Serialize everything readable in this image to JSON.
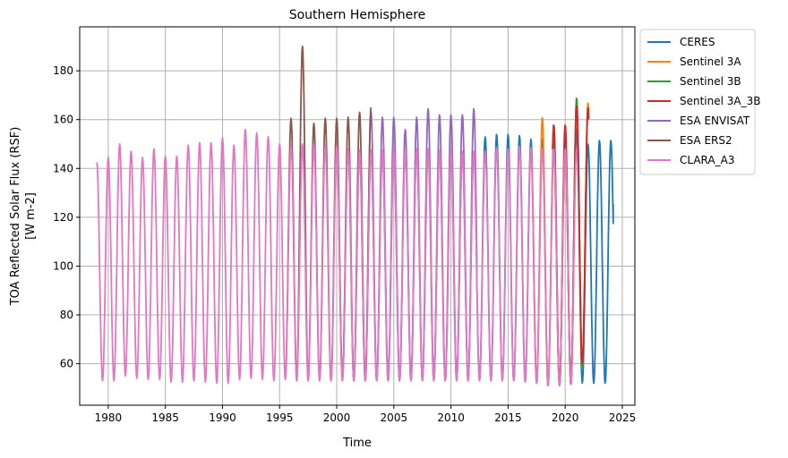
{
  "chart_data": {
    "type": "line",
    "title": "Southern Hemisphere",
    "xlabel": "Time",
    "ylabel": [
      "TOA Reflected Solar Flux (RSF)",
      "[W m-2]"
    ],
    "xlim": [
      1977.5,
      2026.1
    ],
    "ylim": [
      43,
      198
    ],
    "xticks": [
      1980,
      1985,
      1990,
      1995,
      2000,
      2005,
      2010,
      2015,
      2020,
      2025
    ],
    "yticks": [
      60,
      80,
      100,
      120,
      140,
      160,
      180
    ],
    "grid": true,
    "legend_position": "outside-top-right",
    "series": [
      {
        "name": "CERES",
        "color": "#1f77b4",
        "start": 2000.2,
        "end": 2024.2,
        "end_value": 125.5,
        "peaks": {
          "2013": 153,
          "2014": 154,
          "2015": 154,
          "2016": 153.5,
          "2017": 152,
          "2018": 152,
          "2019": 152,
          "2020": 153,
          "2021": 156,
          "2022": 150,
          "2023": 151.5,
          "2024": 151.5
        },
        "troughs": {
          "2000": 54,
          "2021": 52,
          "2022": 52,
          "2023": 52
        }
      },
      {
        "name": "Sentinel 3A",
        "color": "#ff7f0e",
        "start": 2016.9,
        "end": 2022.1,
        "peaks": {
          "2017": 147,
          "2018": 161,
          "2021": 166,
          "2022": 167
        },
        "troughs": {
          "2021": 58
        }
      },
      {
        "name": "Sentinel 3B",
        "color": "#2ca02c",
        "start": 2018.9,
        "end": 2022.1,
        "peaks": {
          "2019": 158,
          "2021": 169,
          "2022": 165
        },
        "troughs": {
          "2021": 58
        }
      },
      {
        "name": "Sentinel 3A_3B",
        "color": "#d62728",
        "start": 2018.9,
        "end": 2022.1,
        "peaks": {
          "2019": 158,
          "2020": 158,
          "2021": 166,
          "2022": 165
        },
        "troughs": {
          "2021": 60
        }
      },
      {
        "name": "ESA ENVISAT",
        "color": "#9467bd",
        "start": 2002.2,
        "end": 2012.3,
        "peaks": {
          "2003": 163.5,
          "2004": 161,
          "2005": 161,
          "2006": 156,
          "2007": 161,
          "2008": 164.5,
          "2009": 162,
          "2010": 162,
          "2011": 162,
          "2012": 164.5
        }
      },
      {
        "name": "ESA ERS2",
        "color": "#8c564b",
        "start": 1995.5,
        "end": 2003.0,
        "peaks": {
          "1996": 160.5,
          "1997": 190,
          "1998": 158.5,
          "1999": 160.5,
          "2000": 160.5,
          "2001": 161,
          "2002": 163,
          "2003": 165
        }
      },
      {
        "name": "CLARA_A3",
        "color": "#e377c2",
        "start": 1979.0,
        "end": 2021.0,
        "start_value": 142.5,
        "peaks": {
          "1979": 142.5,
          "1980": 144.5,
          "1981": 150,
          "1982": 147,
          "1983": 144.5,
          "1984": 148,
          "1985": 145,
          "1986": 145,
          "1987": 149.5,
          "1988": 150.5,
          "1989": 150.5,
          "1990": 152.5,
          "1991": 149.5,
          "1992": 156,
          "1993": 154.5,
          "1994": 153,
          "1995": 150,
          "1996": 149.5,
          "1997": 150,
          "1998": 150,
          "1999": 149.5,
          "2000": 149,
          "2001": 148,
          "2002": 147.5,
          "2003": 147.5,
          "2004": 147.5,
          "2005": 147.5,
          "2006": 148,
          "2007": 148,
          "2008": 148,
          "2009": 147.5,
          "2010": 147.5,
          "2011": 147,
          "2012": 147,
          "2013": 147,
          "2014": 148.5,
          "2015": 148,
          "2016": 149,
          "2017": 148.5,
          "2018": 148,
          "2019": 148,
          "2020": 148,
          "2021": 148
        },
        "troughs": {
          "1979": 53,
          "1980": 53,
          "1981": 55,
          "1982": 54,
          "1983": 53.5,
          "1984": 53.5,
          "1985": 52.5,
          "1986": 52.5,
          "1987": 53,
          "1988": 52.5,
          "1989": 52,
          "1990": 52,
          "1991": 53.5,
          "1992": 54,
          "1993": 53.5,
          "1994": 53,
          "1995": 53.5,
          "1996": 53,
          "1997": 53,
          "1998": 53,
          "1999": 53,
          "2000": 53,
          "2001": 53,
          "2002": 53,
          "2003": 53,
          "2004": 53,
          "2005": 53,
          "2006": 53,
          "2007": 53,
          "2008": 53,
          "2009": 53,
          "2010": 53,
          "2011": 53,
          "2012": 53,
          "2013": 53,
          "2014": 53,
          "2015": 53,
          "2016": 52.5,
          "2017": 52,
          "2018": 51,
          "2019": 51,
          "2020": 51.5
        }
      }
    ]
  }
}
